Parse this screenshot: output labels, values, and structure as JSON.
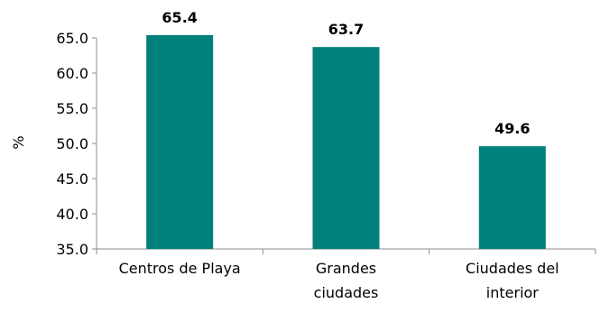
{
  "chart_data": {
    "type": "bar",
    "title": "",
    "xlabel": "",
    "ylabel": "%",
    "ylim": [
      35,
      65
    ],
    "yticks": [
      "35.0",
      "40.0",
      "45.0",
      "50.0",
      "55.0",
      "60.0",
      "65.0"
    ],
    "categories": [
      [
        "Centros de Playa"
      ],
      [
        "Grandes",
        "ciudades"
      ],
      [
        "Ciudades del",
        "interior"
      ]
    ],
    "values": [
      65.4,
      63.7,
      49.6
    ],
    "data_labels": [
      "65.4",
      "63.7",
      "49.6"
    ],
    "bar_color": "#00807A",
    "grid": false,
    "legend": "none"
  }
}
